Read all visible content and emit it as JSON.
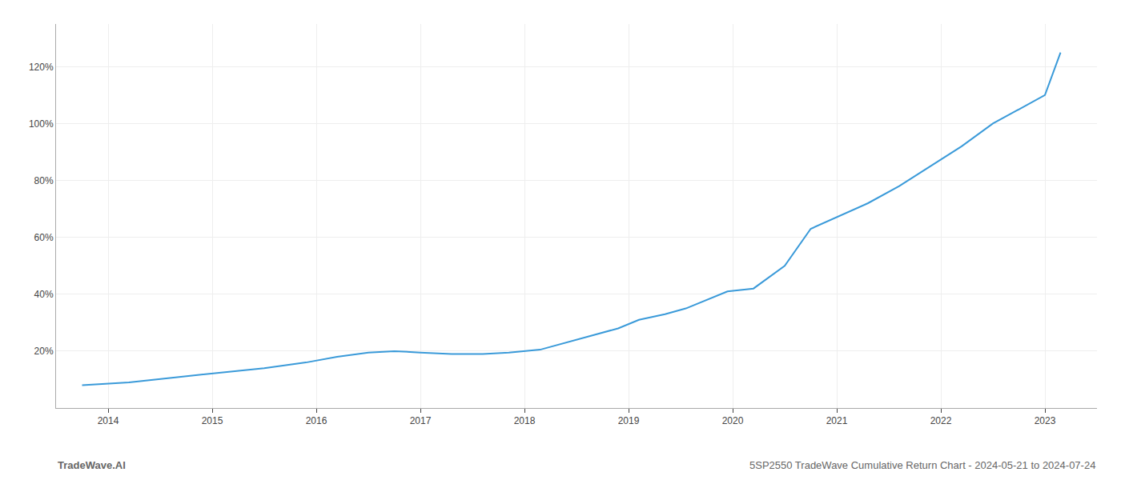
{
  "chart_data": {
    "type": "line",
    "annotations": [
      "TradeWave.AI",
      "5SP2550 TradeWave Cumulative Return Chart - 2024-05-21 to 2024-07-24"
    ],
    "x": [
      2013.75,
      2014.2,
      2014.7,
      2015.1,
      2015.5,
      2015.9,
      2016.2,
      2016.5,
      2016.75,
      2017.0,
      2017.3,
      2017.6,
      2017.85,
      2018.15,
      2018.5,
      2018.9,
      2019.1,
      2019.35,
      2019.55,
      2019.75,
      2019.95,
      2020.2,
      2020.5,
      2020.75,
      2021.0,
      2021.3,
      2021.6,
      2021.9,
      2022.2,
      2022.5,
      2022.75,
      2023.0,
      2023.15
    ],
    "values": [
      8,
      9,
      11,
      12.5,
      14,
      16,
      18,
      19.5,
      20,
      19.5,
      19,
      19,
      19.5,
      20.5,
      24,
      28,
      31,
      33,
      35,
      38,
      41,
      42,
      50,
      63,
      67,
      72,
      78,
      85,
      92,
      100,
      105,
      110,
      125
    ],
    "color": "#3a9ad9",
    "xlim": [
      2013.5,
      2023.5
    ],
    "xticks": [
      2014,
      2015,
      2016,
      2017,
      2018,
      2019,
      2020,
      2021,
      2022,
      2023
    ],
    "ylim": [
      0,
      135
    ],
    "yticks": [
      {
        "value": 20,
        "label": "20%"
      },
      {
        "value": 40,
        "label": "40%"
      },
      {
        "value": 60,
        "label": "60%"
      },
      {
        "value": 80,
        "label": "80%"
      },
      {
        "value": 100,
        "label": "100%"
      },
      {
        "value": 120,
        "label": "120%"
      }
    ],
    "grid": true
  }
}
